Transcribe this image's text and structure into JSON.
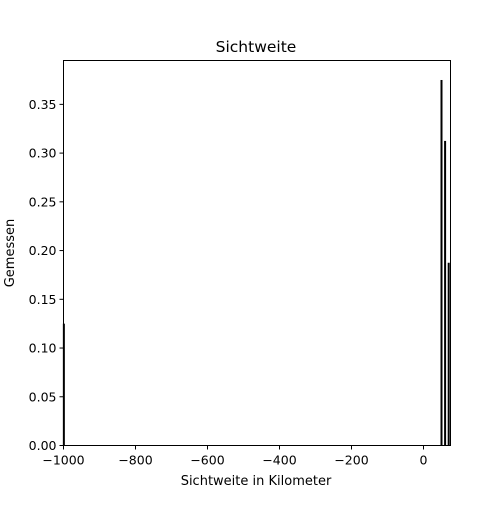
{
  "chart_data": {
    "type": "bar",
    "title": "Sichtweite",
    "xlabel": "Sichtweite in Kilometer",
    "ylabel": "Gemessen",
    "xlim": [
      -1000,
      75
    ],
    "ylim": [
      0,
      0.395
    ],
    "x_ticks": [
      -1000,
      -800,
      -600,
      -400,
      -200,
      0
    ],
    "x_tick_labels": [
      "−1000",
      "−800",
      "−600",
      "−400",
      "−200",
      "0"
    ],
    "y_ticks": [
      0,
      0.05,
      0.1,
      0.15,
      0.2,
      0.25,
      0.3,
      0.35
    ],
    "y_tick_labels": [
      "0.00",
      "0.05",
      "0.10",
      "0.15",
      "0.20",
      "0.25",
      "0.30",
      "0.35"
    ],
    "bars": [
      {
        "x": -999,
        "value": 0.125
      },
      {
        "x": 50,
        "value": 0.375
      },
      {
        "x": 60,
        "value": 0.3125
      },
      {
        "x": 70,
        "value": 0.1875
      }
    ],
    "colors": {
      "edge": "#000000",
      "fill": "#000000"
    },
    "grid": false,
    "legend": "none"
  }
}
